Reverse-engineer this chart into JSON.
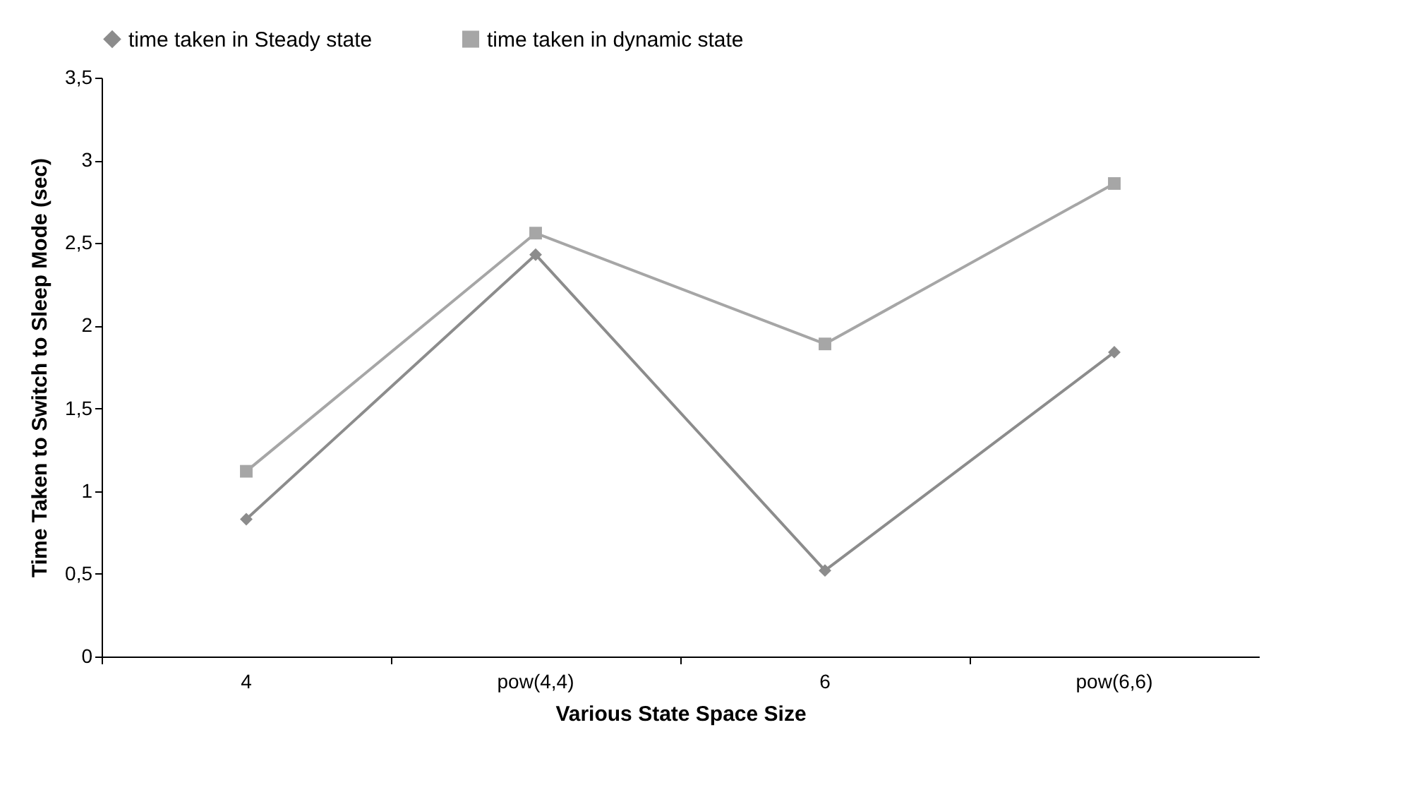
{
  "chart_data": {
    "type": "line",
    "xlabel": "Various State Space Size",
    "ylabel": "Time Taken to Switch to Sleep Mode (sec)",
    "categories": [
      "4",
      "pow(4,4)",
      "6",
      "pow(6,6)"
    ],
    "series": [
      {
        "name": "time taken in Steady state",
        "color": "#8c8c8c",
        "marker": "diamond",
        "values": [
          0.83,
          2.43,
          0.52,
          1.84
        ]
      },
      {
        "name": "time taken in dynamic state",
        "color": "#a6a6a6",
        "marker": "square",
        "values": [
          1.12,
          2.56,
          1.89,
          2.86
        ]
      }
    ],
    "ylim": [
      0,
      3.5
    ],
    "yticks": [
      0,
      {
        "value": 0.5,
        "label": "0,5"
      },
      1,
      {
        "value": 1.5,
        "label": "1,5"
      },
      2,
      {
        "value": 2.5,
        "label": "2,5"
      },
      3,
      {
        "value": 3.5,
        "label": "3,5"
      }
    ],
    "grid": false,
    "legend": "top",
    "line_style": "solid"
  }
}
